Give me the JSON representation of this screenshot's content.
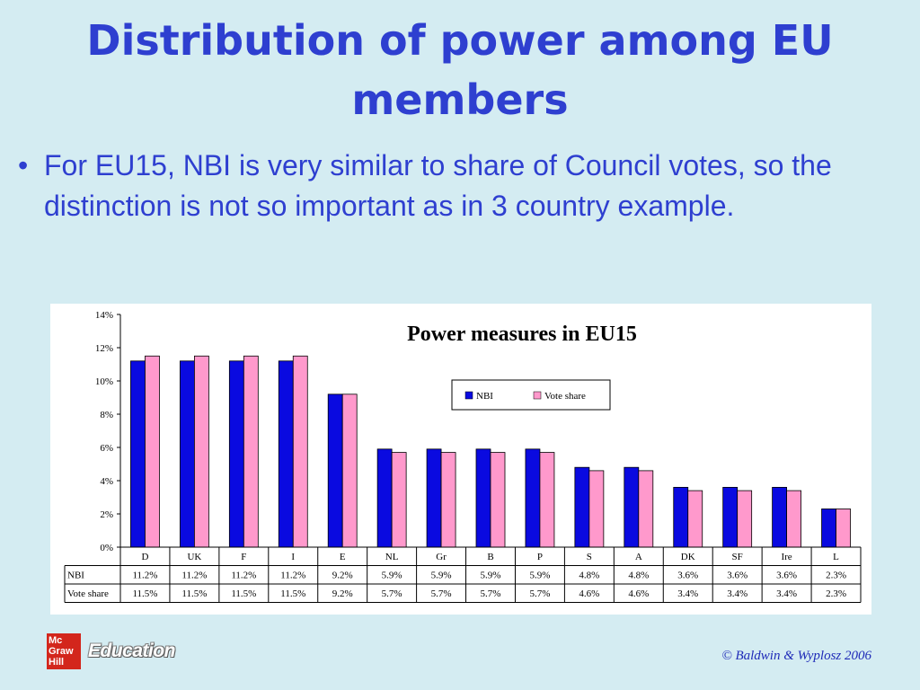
{
  "slide": {
    "title": "Distribution of power among EU members",
    "bullet_text": "For EU15, NBI is very similar to share of Council votes, so the distinction is not so important as in 3 country example.",
    "copyright": "© Baldwin & Wyplosz 2006"
  },
  "logo": {
    "line1": "Mc",
    "line2": "Graw",
    "line3": "Hill",
    "word": "Education"
  },
  "colors": {
    "title": "#2e3fd0",
    "nbi": "#0a0ae0",
    "vote_share": "#ff99cc",
    "background": "#d4ecf2"
  },
  "chart_data": {
    "type": "bar",
    "title": "Power measures in EU15",
    "categories": [
      "D",
      "UK",
      "F",
      "I",
      "E",
      "NL",
      "Gr",
      "B",
      "P",
      "S",
      "A",
      "DK",
      "SF",
      "Ire",
      "L"
    ],
    "series": [
      {
        "name": "NBI",
        "values": [
          11.2,
          11.2,
          11.2,
          11.2,
          9.2,
          5.9,
          5.9,
          5.9,
          5.9,
          4.8,
          4.8,
          3.6,
          3.6,
          3.6,
          2.3
        ],
        "labels": [
          "11.2%",
          "11.2%",
          "11.2%",
          "11.2%",
          "9.2%",
          "5.9%",
          "5.9%",
          "5.9%",
          "5.9%",
          "4.8%",
          "4.8%",
          "3.6%",
          "3.6%",
          "3.6%",
          "2.3%"
        ]
      },
      {
        "name": "Vote share",
        "values": [
          11.5,
          11.5,
          11.5,
          11.5,
          9.2,
          5.7,
          5.7,
          5.7,
          5.7,
          4.6,
          4.6,
          3.4,
          3.4,
          3.4,
          2.3
        ],
        "labels": [
          "11.5%",
          "11.5%",
          "11.5%",
          "11.5%",
          "9.2%",
          "5.7%",
          "5.7%",
          "5.7%",
          "5.7%",
          "4.6%",
          "4.6%",
          "3.4%",
          "3.4%",
          "3.4%",
          "2.3%"
        ]
      }
    ],
    "ylim": [
      0,
      14
    ],
    "yticks": [
      "0%",
      "2%",
      "4%",
      "6%",
      "8%",
      "10%",
      "12%",
      "14%"
    ],
    "legend_position": "top-right",
    "grid": false,
    "data_table": true
  }
}
